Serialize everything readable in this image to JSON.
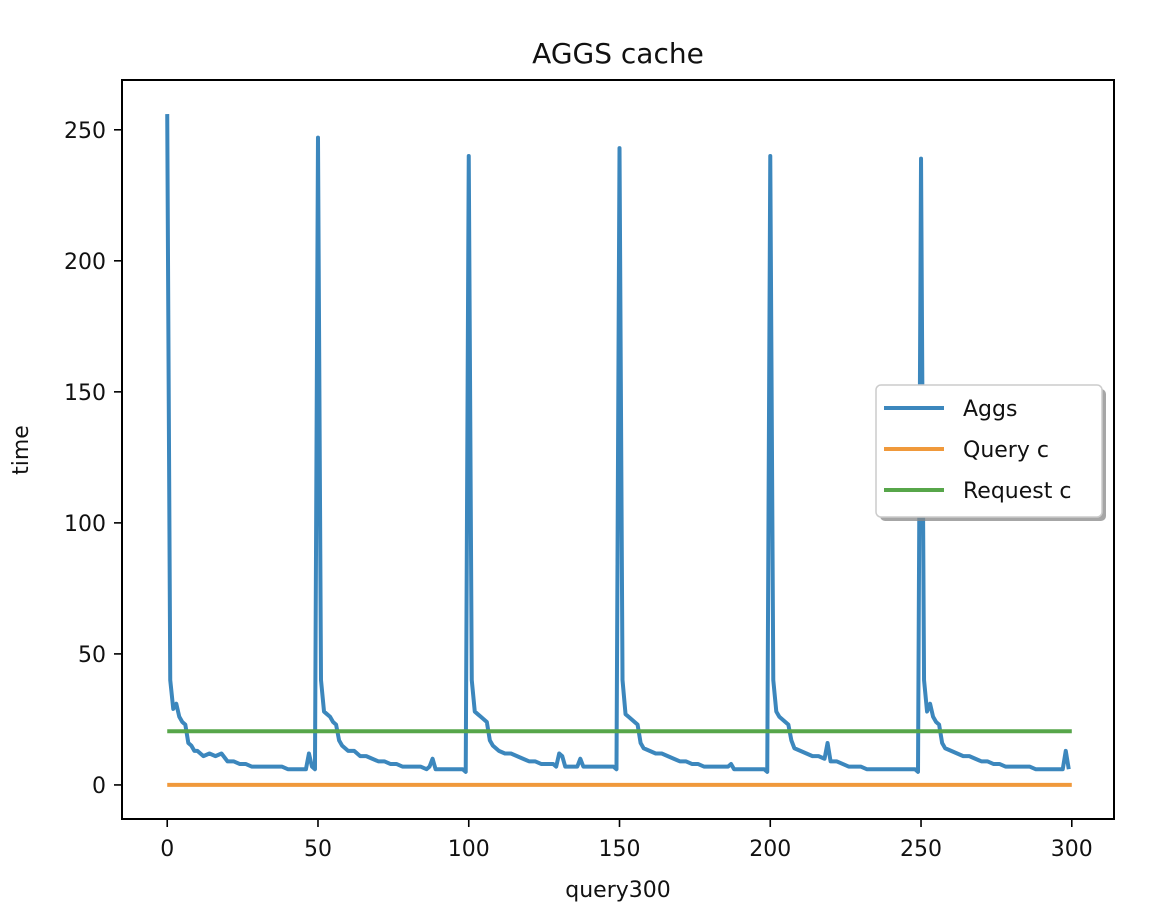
{
  "chart_data": {
    "type": "line",
    "title": "AGGS cache",
    "xlabel": "query300",
    "ylabel": "time",
    "xlim": [
      -15,
      314
    ],
    "ylim": [
      -13,
      269
    ],
    "xticks": [
      0,
      50,
      100,
      150,
      200,
      250,
      300
    ],
    "yticks": [
      0,
      50,
      100,
      150,
      200,
      250
    ],
    "grid": false,
    "legend_position": "center-right",
    "series": [
      {
        "name": "Aggs",
        "color": "#3c87bd",
        "x": [
          0,
          1,
          2,
          3,
          4,
          5,
          6,
          7,
          8,
          9,
          10,
          12,
          14,
          16,
          18,
          20,
          22,
          24,
          26,
          28,
          30,
          32,
          34,
          36,
          38,
          40,
          42,
          44,
          46,
          47,
          48,
          49,
          50,
          51,
          52,
          53,
          54,
          55,
          56,
          57,
          58,
          60,
          62,
          64,
          66,
          68,
          70,
          72,
          74,
          76,
          78,
          80,
          82,
          84,
          86,
          87,
          88,
          89,
          90,
          92,
          94,
          96,
          98,
          99,
          100,
          101,
          102,
          103,
          104,
          105,
          106,
          107,
          108,
          110,
          112,
          114,
          116,
          118,
          120,
          122,
          124,
          126,
          128,
          129,
          130,
          131,
          132,
          134,
          136,
          137,
          138,
          140,
          142,
          144,
          146,
          148,
          149,
          150,
          151,
          152,
          153,
          154,
          155,
          156,
          157,
          158,
          160,
          162,
          164,
          166,
          168,
          170,
          172,
          174,
          176,
          178,
          180,
          182,
          184,
          186,
          187,
          188,
          190,
          192,
          194,
          196,
          198,
          199,
          200,
          201,
          202,
          203,
          204,
          205,
          206,
          207,
          208,
          210,
          212,
          214,
          216,
          218,
          219,
          220,
          222,
          224,
          226,
          228,
          230,
          232,
          234,
          236,
          238,
          240,
          242,
          244,
          246,
          248,
          249,
          250,
          251,
          252,
          253,
          254,
          255,
          256,
          257,
          258,
          260,
          262,
          264,
          266,
          268,
          270,
          272,
          274,
          276,
          278,
          280,
          282,
          284,
          286,
          288,
          290,
          292,
          294,
          296,
          297,
          298,
          299
        ],
        "y": [
          256,
          40,
          29,
          31,
          26,
          24,
          23,
          16,
          15,
          13,
          13,
          11,
          12,
          11,
          12,
          9,
          9,
          8,
          8,
          7,
          7,
          7,
          7,
          7,
          7,
          6,
          6,
          6,
          6,
          12,
          7,
          6,
          247,
          40,
          28,
          27,
          26,
          24,
          23,
          17,
          15,
          13,
          13,
          11,
          11,
          10,
          9,
          9,
          8,
          8,
          7,
          7,
          7,
          7,
          6,
          7,
          10,
          6,
          6,
          6,
          6,
          6,
          6,
          5,
          240,
          40,
          28,
          27,
          26,
          25,
          24,
          17,
          15,
          13,
          12,
          12,
          11,
          10,
          9,
          9,
          8,
          8,
          8,
          7,
          12,
          11,
          7,
          7,
          7,
          10,
          7,
          7,
          7,
          7,
          7,
          7,
          6,
          243,
          40,
          27,
          26,
          25,
          24,
          23,
          16,
          14,
          13,
          12,
          12,
          11,
          10,
          9,
          9,
          8,
          8,
          7,
          7,
          7,
          7,
          7,
          8,
          6,
          6,
          6,
          6,
          6,
          6,
          5,
          240,
          40,
          28,
          26,
          25,
          24,
          23,
          17,
          14,
          13,
          12,
          11,
          11,
          10,
          16,
          9,
          9,
          8,
          7,
          7,
          7,
          6,
          6,
          6,
          6,
          6,
          6,
          6,
          6,
          6,
          5,
          239,
          40,
          28,
          31,
          26,
          24,
          23,
          16,
          14,
          13,
          12,
          11,
          11,
          10,
          9,
          9,
          8,
          8,
          7,
          7,
          7,
          7,
          7,
          6,
          6,
          6,
          6,
          6,
          6,
          13,
          6
        ]
      },
      {
        "name": "Query c",
        "color": "#f0993b",
        "x": [
          0,
          300
        ],
        "y": [
          0,
          0
        ]
      },
      {
        "name": "Request c",
        "color": "#57a64a",
        "x": [
          0,
          300
        ],
        "y": [
          20.5,
          20.5
        ]
      }
    ]
  }
}
